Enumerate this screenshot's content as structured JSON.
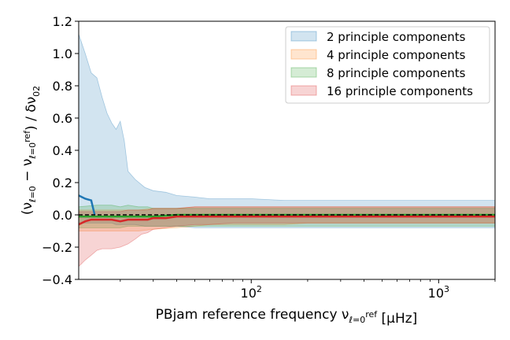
{
  "chart_data": {
    "type": "area",
    "xscale": "log",
    "xlim": [
      12,
      2000
    ],
    "ylim": [
      -0.4,
      1.2
    ],
    "xlabel": "PBjam reference frequency ν_{ℓ=0}^{ref} [μHz]",
    "ylabel": "(ν_{ℓ=0} − ν_{ℓ=0}^{ref}) / δν_{02}",
    "x_ticks": [
      {
        "value": 100,
        "base": "10",
        "exp": "2"
      },
      {
        "value": 1000,
        "base": "10",
        "exp": "3"
      }
    ],
    "y_ticks": [
      -0.4,
      -0.2,
      0.0,
      0.2,
      0.4,
      0.6,
      0.8,
      1.0,
      1.2
    ],
    "y_tick_labels": [
      "−0.4",
      "−0.2",
      "0.0",
      "0.2",
      "0.4",
      "0.6",
      "0.8",
      "1.0",
      "1.2"
    ],
    "reference_line": {
      "y": 0,
      "style": "dashed"
    },
    "legend": {
      "position": "upper right"
    },
    "series": [
      {
        "name": "2 principle components",
        "fill_color": "#1f77b4",
        "line_color": "#1f77b4",
        "band": {
          "x": [
            12,
            13,
            14,
            15,
            16,
            17,
            18,
            19,
            20,
            21,
            22,
            24,
            27,
            30,
            35,
            40,
            50,
            60,
            80,
            100,
            150,
            200,
            300,
            500,
            800,
            1200,
            2000
          ],
          "upper": [
            1.12,
            1.0,
            0.88,
            0.85,
            0.73,
            0.63,
            0.57,
            0.53,
            0.58,
            0.46,
            0.27,
            0.22,
            0.17,
            0.15,
            0.14,
            0.12,
            0.11,
            0.1,
            0.1,
            0.1,
            0.09,
            0.09,
            0.09,
            0.09,
            0.09,
            0.09,
            0.09
          ],
          "lower": [
            -0.05,
            -0.05,
            -0.05,
            -0.05,
            -0.05,
            -0.05,
            -0.05,
            -0.06,
            -0.06,
            -0.06,
            -0.06,
            -0.06,
            -0.07,
            -0.07,
            -0.07,
            -0.07,
            -0.08,
            -0.08,
            -0.08,
            -0.08,
            -0.08,
            -0.08,
            -0.08,
            -0.08,
            -0.08,
            -0.08,
            -0.08
          ]
        },
        "line": {
          "x": [
            12,
            13,
            14,
            14.6
          ],
          "y": [
            0.12,
            0.1,
            0.09,
            0.0
          ]
        }
      },
      {
        "name": "4 principle components",
        "fill_color": "#ff7f0e",
        "line_color": "#ff7f0e",
        "band": {
          "x": [
            12,
            15,
            20,
            25,
            30,
            40,
            50,
            60,
            80,
            100,
            150,
            200,
            300,
            500,
            800,
            1200,
            2000
          ],
          "upper": [
            0.03,
            0.03,
            0.03,
            0.03,
            0.04,
            0.04,
            0.05,
            0.05,
            0.05,
            0.05,
            0.05,
            0.05,
            0.05,
            0.05,
            0.05,
            0.05,
            0.05
          ],
          "lower": [
            -0.1,
            -0.1,
            -0.1,
            -0.1,
            -0.09,
            -0.08,
            -0.07,
            -0.06,
            -0.06,
            -0.06,
            -0.06,
            -0.05,
            -0.05,
            -0.05,
            -0.05,
            -0.05,
            -0.05
          ]
        },
        "line": null
      },
      {
        "name": "8 principle components",
        "fill_color": "#2ca02c",
        "line_color": "#2ca02c",
        "band": {
          "x": [
            12,
            15,
            18,
            20,
            22,
            25,
            28,
            30,
            35,
            40,
            50,
            60,
            80,
            100,
            150,
            200,
            300,
            500,
            800,
            1200,
            2000
          ],
          "upper": [
            0.05,
            0.06,
            0.06,
            0.05,
            0.06,
            0.05,
            0.05,
            0.04,
            0.04,
            0.04,
            0.04,
            0.04,
            0.04,
            0.04,
            0.04,
            0.04,
            0.04,
            0.04,
            0.04,
            0.04,
            0.04
          ],
          "lower": [
            -0.08,
            -0.08,
            -0.08,
            -0.08,
            -0.07,
            -0.07,
            -0.07,
            -0.07,
            -0.07,
            -0.07,
            -0.07,
            -0.07,
            -0.07,
            -0.07,
            -0.07,
            -0.07,
            -0.07,
            -0.07,
            -0.07,
            -0.07,
            -0.07
          ]
        },
        "line": {
          "x": [
            12,
            14,
            16,
            18,
            20,
            25,
            30,
            40,
            60,
            100,
            200,
            500,
            1000,
            2000
          ],
          "y": [
            -0.01,
            -0.01,
            -0.01,
            -0.01,
            -0.01,
            -0.01,
            -0.01,
            0.0,
            0.0,
            0.0,
            0.0,
            0.0,
            0.0,
            0.0
          ]
        }
      },
      {
        "name": "16 principle components",
        "fill_color": "#d62728",
        "line_color": "#d62728",
        "band": {
          "x": [
            12,
            13,
            14,
            15,
            16,
            18,
            20,
            22,
            24,
            26,
            28,
            30,
            35,
            40,
            50,
            60,
            80,
            100,
            150,
            200,
            300,
            500,
            800,
            1200,
            2000
          ],
          "upper": [
            0.02,
            0.02,
            0.02,
            0.02,
            0.02,
            0.02,
            0.02,
            0.03,
            0.03,
            0.03,
            0.03,
            0.04,
            0.04,
            0.04,
            0.05,
            0.05,
            0.05,
            0.05,
            0.05,
            0.05,
            0.05,
            0.05,
            0.05,
            0.05,
            0.05
          ],
          "lower": [
            -0.32,
            -0.28,
            -0.25,
            -0.22,
            -0.21,
            -0.21,
            -0.2,
            -0.18,
            -0.15,
            -0.12,
            -0.11,
            -0.09,
            -0.08,
            -0.07,
            -0.06,
            -0.06,
            -0.05,
            -0.05,
            -0.05,
            -0.05,
            -0.05,
            -0.05,
            -0.05,
            -0.05,
            -0.05
          ]
        },
        "line": {
          "x": [
            12,
            13,
            14,
            15,
            16,
            18,
            20,
            22,
            25,
            28,
            30,
            35,
            40,
            50,
            60,
            80,
            100,
            200,
            500,
            1000,
            2000
          ],
          "y": [
            -0.06,
            -0.04,
            -0.03,
            -0.03,
            -0.03,
            -0.03,
            -0.04,
            -0.03,
            -0.03,
            -0.03,
            -0.02,
            -0.02,
            -0.01,
            -0.01,
            -0.01,
            -0.01,
            -0.01,
            -0.01,
            -0.01,
            -0.01,
            -0.01
          ]
        }
      }
    ]
  }
}
